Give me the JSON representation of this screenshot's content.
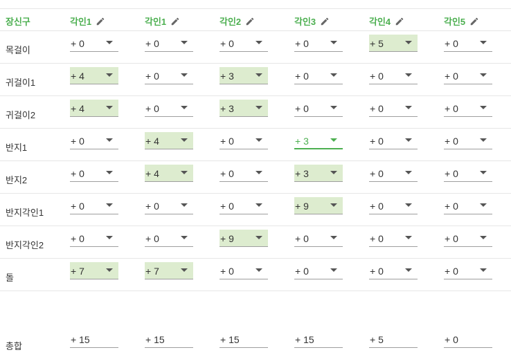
{
  "header": {
    "first_col": "장신구",
    "columns": [
      "각인1",
      "각인1",
      "각인2",
      "각인3",
      "각인4",
      "각인5"
    ]
  },
  "rows": [
    {
      "label": "목걸이",
      "values": [
        "+ 0",
        "+ 0",
        "+ 0",
        "+ 0",
        "+ 5",
        "+ 0"
      ],
      "highlighted": [
        false,
        false,
        false,
        false,
        true,
        false
      ]
    },
    {
      "label": "귀걸이1",
      "values": [
        "+ 4",
        "+ 0",
        "+ 3",
        "+ 0",
        "+ 0",
        "+ 0"
      ],
      "highlighted": [
        true,
        false,
        true,
        false,
        false,
        false
      ]
    },
    {
      "label": "귀걸이2",
      "values": [
        "+ 4",
        "+ 0",
        "+ 3",
        "+ 0",
        "+ 0",
        "+ 0"
      ],
      "highlighted": [
        true,
        false,
        true,
        false,
        false,
        false
      ]
    },
    {
      "label": "반지1",
      "values": [
        "+ 0",
        "+ 4",
        "+ 0",
        "+ 3",
        "+ 0",
        "+ 0"
      ],
      "highlighted": [
        false,
        true,
        false,
        false,
        false,
        false
      ],
      "focused": [
        false,
        false,
        false,
        true,
        false,
        false
      ]
    },
    {
      "label": "반지2",
      "values": [
        "+ 0",
        "+ 4",
        "+ 0",
        "+ 3",
        "+ 0",
        "+ 0"
      ],
      "highlighted": [
        false,
        true,
        false,
        true,
        false,
        false
      ]
    },
    {
      "label": "반지각인1",
      "values": [
        "+ 0",
        "+ 0",
        "+ 0",
        "+ 9",
        "+ 0",
        "+ 0"
      ],
      "highlighted": [
        false,
        false,
        false,
        true,
        false,
        false
      ]
    },
    {
      "label": "반지각인2",
      "values": [
        "+ 0",
        "+ 0",
        "+ 9",
        "+ 0",
        "+ 0",
        "+ 0"
      ],
      "highlighted": [
        false,
        false,
        true,
        false,
        false,
        false
      ]
    },
    {
      "label": "돌",
      "values": [
        "+ 7",
        "+ 7",
        "+ 0",
        "+ 0",
        "+ 0",
        "+ 0"
      ],
      "highlighted": [
        true,
        true,
        false,
        false,
        false,
        false
      ]
    }
  ],
  "totals": {
    "label": "총합",
    "values": [
      "+ 15",
      "+ 15",
      "+ 15",
      "+ 15",
      "+ 5",
      "+ 0"
    ]
  },
  "colors": {
    "accent": "#4caf50",
    "highlight": "#ddeccf",
    "divider": "#e6e6e6"
  },
  "icons": {
    "edit": "pencil-icon",
    "dropdown": "chevron-down-icon"
  }
}
